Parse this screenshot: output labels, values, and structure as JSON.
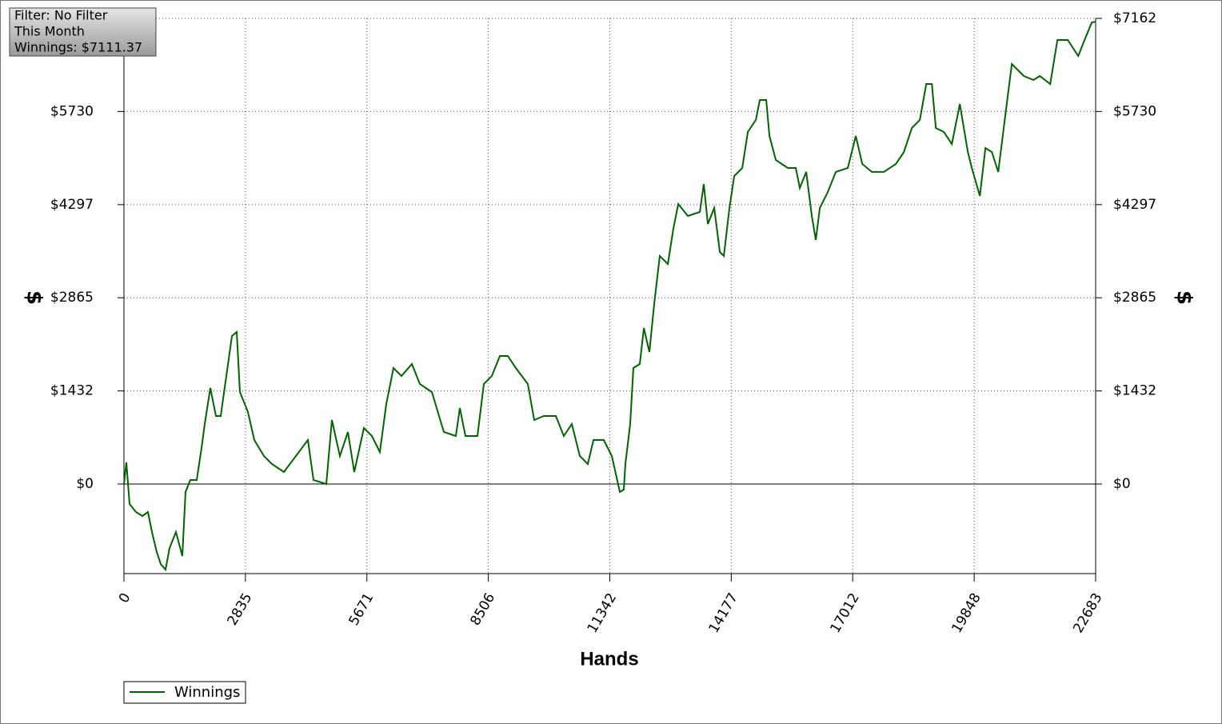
{
  "chart_data": {
    "type": "line",
    "annotations": [
      "Filter: No Filter",
      "This Month",
      "Winnings: $7111.37"
    ],
    "x_label": "Hands",
    "y_label": "$",
    "xlim": [
      0,
      22683
    ],
    "xticks": [
      0,
      2835,
      5671,
      8506,
      11342,
      14177,
      17012,
      19848,
      22683
    ],
    "ylim": [
      -1378,
      7162
    ],
    "yticks": [
      {
        "value": 0,
        "label": "$0"
      },
      {
        "value": 1432,
        "label": "$1432"
      },
      {
        "value": 2865,
        "label": "$2865"
      },
      {
        "value": 4297,
        "label": "$4297"
      },
      {
        "value": 5730,
        "label": "$5730"
      },
      {
        "value": 7162,
        "label": "$7162"
      }
    ],
    "grid": true,
    "legend_position": "bottom-left",
    "x": [
      0,
      56,
      131,
      280,
      429,
      560,
      653,
      765,
      859,
      971,
      1064,
      1214,
      1363,
      1438,
      1550,
      1699,
      1811,
      1886,
      2016,
      2147,
      2259,
      2390,
      2521,
      2633,
      2707,
      2894,
      3043,
      3267,
      3454,
      3734,
      4014,
      4294,
      4425,
      4723,
      4854,
      5040,
      5227,
      5376,
      5600,
      5787,
      5974,
      6123,
      6291,
      6478,
      6721,
      6908,
      7188,
      7468,
      7748,
      7841,
      7972,
      8252,
      8401,
      8588,
      8775,
      8961,
      9148,
      9428,
      9578,
      9802,
      10082,
      10268,
      10455,
      10642,
      10829,
      10960,
      11202,
      11389,
      11576,
      11669,
      11706,
      11818,
      11893,
      12042,
      12136,
      12266,
      12378,
      12509,
      12696,
      12827,
      12939,
      13163,
      13443,
      13536,
      13630,
      13779,
      13910,
      14003,
      14134,
      14246,
      14433,
      14563,
      14750,
      14844,
      14993,
      15068,
      15217,
      15497,
      15684,
      15777,
      15927,
      16057,
      16151,
      16244,
      16431,
      16618,
      16898,
      17085,
      17235,
      17459,
      17739,
      18019,
      18206,
      18393,
      18579,
      18729,
      18859,
      18953,
      19139,
      19326,
      19513,
      19700,
      19793,
      19980,
      20110,
      20260,
      20409,
      20596,
      20727,
      21007,
      21231,
      21380,
      21623,
      21791,
      22033,
      22276,
      22462,
      22593,
      22683
    ],
    "series": [
      {
        "name": "Winnings",
        "color": "#006400",
        "values": [
          0,
          332,
          -308,
          -431,
          -492,
          -431,
          -738,
          -1046,
          -1231,
          -1317,
          -985,
          -738,
          -1108,
          -123,
          62,
          62,
          554,
          923,
          1477,
          1046,
          1046,
          1661,
          2277,
          2338,
          1415,
          1108,
          677,
          431,
          308,
          185,
          431,
          677,
          62,
          0,
          985,
          431,
          800,
          185,
          861,
          738,
          492,
          1231,
          1784,
          1661,
          1846,
          1538,
          1415,
          800,
          738,
          1169,
          738,
          738,
          1538,
          1661,
          1969,
          1969,
          1784,
          1538,
          985,
          1046,
          1046,
          738,
          923,
          431,
          308,
          677,
          677,
          431,
          -123,
          -86,
          308,
          923,
          1784,
          1846,
          2400,
          2031,
          2769,
          3507,
          3384,
          3938,
          4307,
          4123,
          4184,
          4615,
          4000,
          4245,
          3569,
          3507,
          4245,
          4738,
          4861,
          5415,
          5600,
          5907,
          5907,
          5354,
          4984,
          4861,
          4861,
          4553,
          4800,
          4123,
          3753,
          4245,
          4492,
          4800,
          4861,
          5354,
          4923,
          4800,
          4800,
          4923,
          5107,
          5476,
          5600,
          6153,
          6153,
          5476,
          5415,
          5230,
          5845,
          5107,
          4861,
          4430,
          5168,
          5107,
          4800,
          5784,
          6461,
          6276,
          6215,
          6276,
          6153,
          6830,
          6830,
          6584,
          6891,
          7100,
          7111
        ]
      }
    ]
  }
}
